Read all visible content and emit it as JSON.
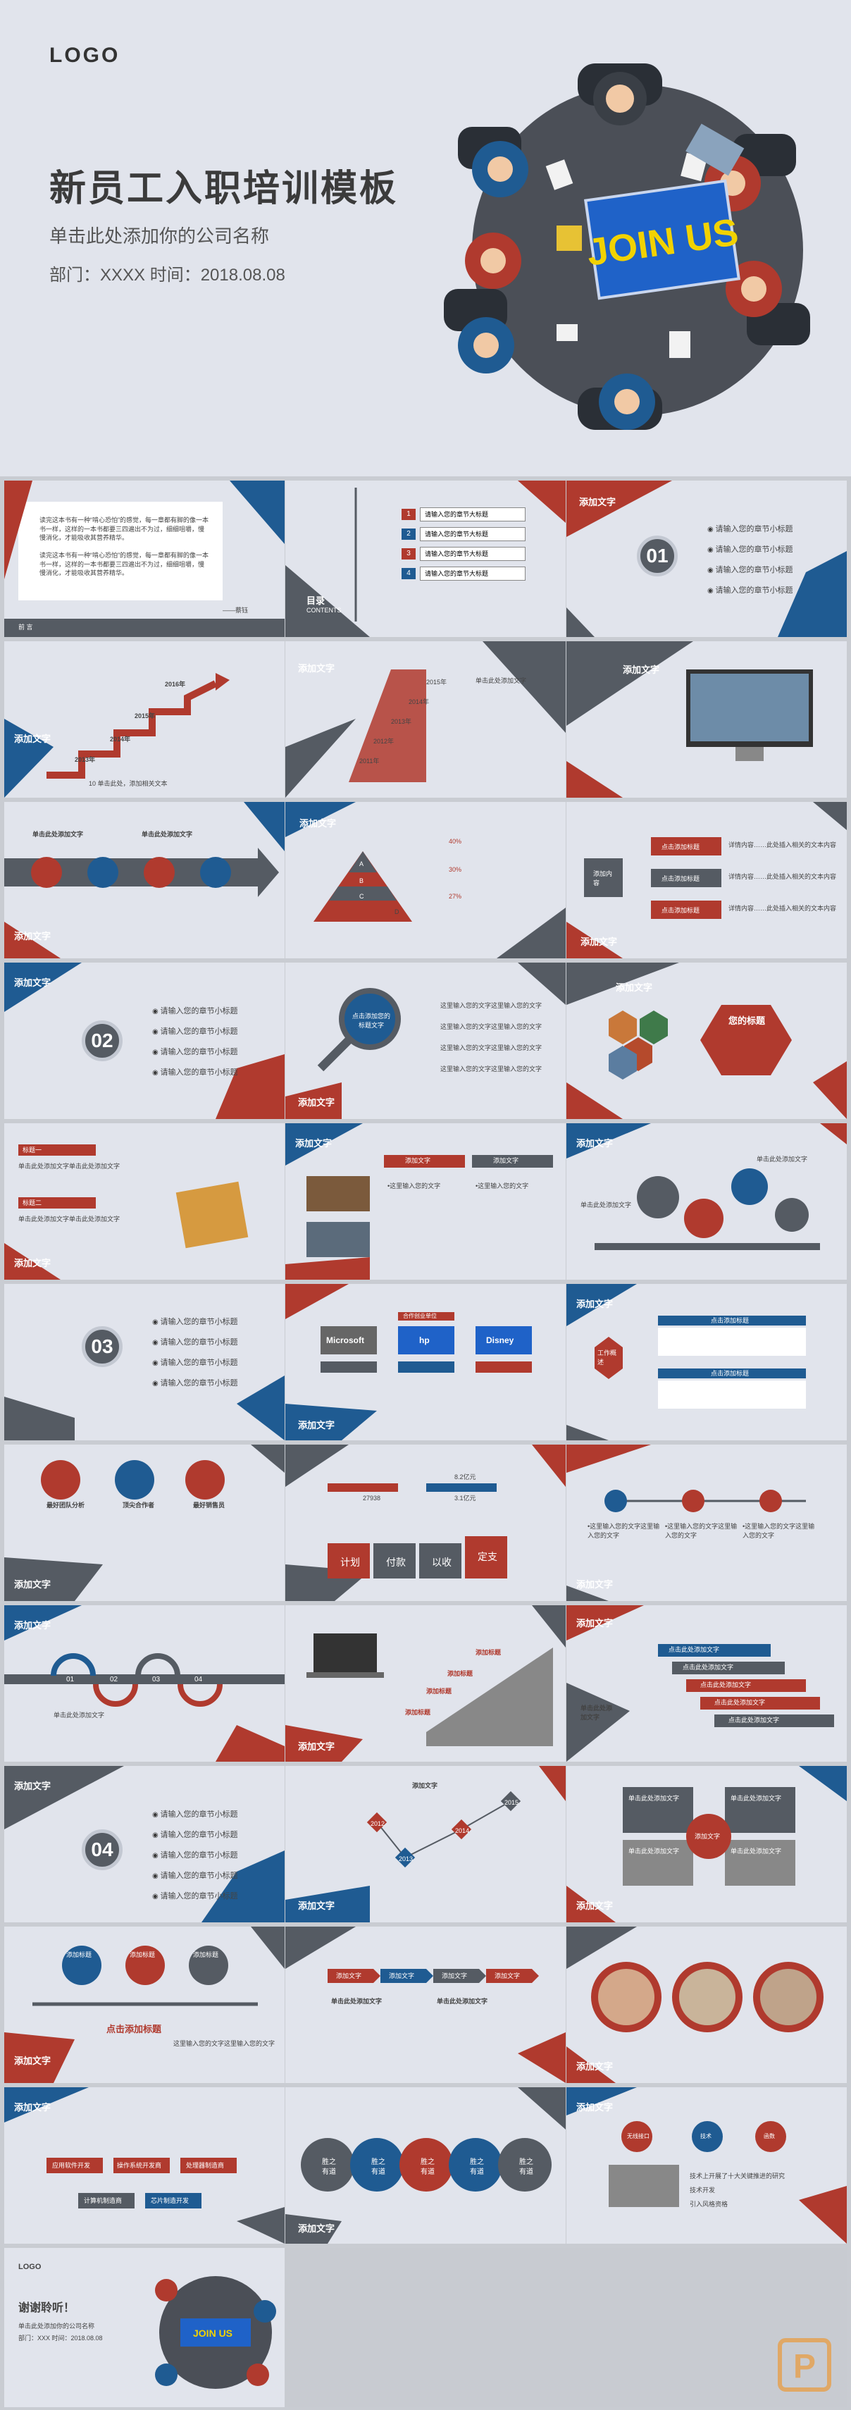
{
  "hero": {
    "logo": "LOGO",
    "title": "新员工入职培训模板",
    "subtitle": "单击此处添加你的公司名称",
    "meta": "部门：XXXX     时间：2018.08.08",
    "center_sign": "JOIN US"
  },
  "s1": {
    "quote": "读完这本书有一种“啃心恐怕”的感觉，每一章都有脚的像一本书一样，这样的一本书都要三四遍出不为过，细细咀嚼，慢慢消化，才能吸收其营养精华。",
    "quote2": "读完这本书有一种“啃心恐怕”的感觉，每一章都有脚的像一本书一样，这样的一本书都要三四遍出不为过，细细咀嚼，慢慢消化，才能吸收其营养精华。",
    "foot_left": "前 言",
    "foot_right": "——蔡钰"
  },
  "s2": {
    "title": "目录",
    "en": "CONTENTS",
    "items": [
      "请输入您的章节大标题",
      "请输入您的章节大标题",
      "请输入您的章节大标题",
      "请输入您的章节大标题"
    ],
    "nums": [
      "1",
      "2",
      "3",
      "4"
    ]
  },
  "s3": {
    "tag": "添加文字",
    "num": "01",
    "items": [
      "请输入您的章节小标题",
      "请输入您的章节小标题",
      "请输入您的章节小标题",
      "请输入您的章节小标题"
    ]
  },
  "s4": {
    "tag": "添加文字",
    "years": [
      "2013年",
      "2014年",
      "2015年",
      "2016年"
    ],
    "note": "10 单击此处，添加相关文本"
  },
  "s5": {
    "tag": "添加文字",
    "years": [
      "2015年",
      "2014年",
      "2013年",
      "2012年",
      "2011年"
    ],
    "note": "单击此处添加文字"
  },
  "s6": {
    "tag": "添加文字"
  },
  "s7": {
    "tag": "添加文字",
    "labels": [
      "单击此处添加文字",
      "单击此处添加文字"
    ]
  },
  "s8": {
    "tag": "添加文字",
    "levels": [
      "A",
      "B",
      "C",
      "D"
    ],
    "pcts": [
      "40%",
      "30%",
      "27%"
    ],
    "note": "单击此处添加文字"
  },
  "s9": {
    "tag": "添加文字",
    "center": "添加内容",
    "rows": [
      "点击添加标题",
      "点击添加标题",
      "点击添加标题"
    ],
    "desc": "详情内容……此处插入相关的文本内容"
  },
  "s10": {
    "tag": "添加文字",
    "num": "02",
    "items": [
      "请输入您的章节小标题",
      "请输入您的章节小标题",
      "请输入您的章节小标题",
      "请输入您的章节小标题"
    ]
  },
  "s11": {
    "tag": "添加文字",
    "bubble": "点击添加您的标题文字",
    "items": [
      "这里输入您的文字这里输入您的文字",
      "这里输入您的文字这里输入您的文字",
      "这里输入您的文字这里输入您的文字",
      "这里输入您的文字这里输入您的文字"
    ]
  },
  "s12": {
    "tag": "添加文字",
    "hex_title": "您的标题"
  },
  "s13": {
    "tag": "添加文字",
    "h1": "标题一",
    "h2": "标题二",
    "text": "单击此处添加文字单击此处添加文字"
  },
  "s14": {
    "tag": "添加文字",
    "cols": [
      "添加文字",
      "添加文字"
    ],
    "item": "•这里输入您的文字"
  },
  "s15": {
    "tag": "添加文字",
    "gears": [
      "单击此处添加文字",
      "单击此处添加文字"
    ]
  },
  "s16": {
    "tag": "添加文字",
    "num": "03",
    "items": [
      "请输入您的章节小标题",
      "请输入您的章节小标题",
      "请输入您的章节小标题",
      "请输入您的章节小标题"
    ]
  },
  "s17": {
    "tag": "添加文字",
    "head": "合作创业单位",
    "logos": [
      "Microsoft",
      "hp",
      "Disney"
    ],
    "sub": [
      "微软",
      "小惠科",
      "大儿童",
      "微软IQ通话",
      "微风",
      "传讯网格，强规"
    ]
  },
  "s18": {
    "tag": "添加文字",
    "center": "工作概述",
    "heads": [
      "点击添加标题",
      "点击添加标题"
    ]
  },
  "s19": {
    "tag": "添加文字",
    "badges": [
      "最好团队分析",
      "顶尖合作者",
      "最好销售员"
    ]
  },
  "s20": {
    "tag": "添加文字",
    "blocks": [
      "计划",
      "付款",
      "以收",
      "定支"
    ],
    "vals": [
      "27938",
      "8.2亿元",
      "3.1亿元"
    ]
  },
  "s21": {
    "tag": "添加文字",
    "item": "•这里输入您的文字这里输入您的文字"
  },
  "s22": {
    "tag": "添加文字",
    "nums": [
      "01",
      "02",
      "03",
      "04"
    ],
    "note": "单击此处添加文字"
  },
  "s23": {
    "tag": "添加文字",
    "labels": [
      "添加标题",
      "添加标题",
      "添加标题",
      "添加标题"
    ]
  },
  "s24": {
    "tag": "添加文字",
    "center": "单击此处添加文字",
    "bars": [
      "点击此处添加文字",
      "点击此处添加文字",
      "点击此处添加文字",
      "点击此处添加文字",
      "点击此处添加文字"
    ]
  },
  "s25": {
    "tag": "添加文字",
    "num": "04",
    "items": [
      "请输入您的章节小标题",
      "请输入您的章节小标题",
      "请输入您的章节小标题",
      "请输入您的章节小标题",
      "请输入您的章节小标题"
    ]
  },
  "s26": {
    "tag": "添加文字",
    "top": "添加文字",
    "years": [
      "2012",
      "2013",
      "2014",
      "2015"
    ]
  },
  "s27": {
    "tag": "添加文字",
    "center": "添加文字",
    "block": "单击此处添加文字"
  },
  "s28": {
    "tag": "添加文字",
    "heads": [
      "添加标题",
      "添加标题",
      "添加标题"
    ],
    "center": "点击添加标题",
    "item": "这里输入您的文字这里输入您的文字"
  },
  "s29": {
    "tag": "添加文字",
    "arrows": [
      "添加文字",
      "添加文字",
      "添加文字",
      "添加文字"
    ],
    "cell": "单击此处添加文字"
  },
  "s30": {
    "tag": "添加文字"
  },
  "s31": {
    "tag": "添加文字",
    "boxes": [
      "应用软件开发",
      "操作系统开发商",
      "处理器制造商",
      "计算机制造商",
      "芯片制造开发"
    ]
  },
  "s32": {
    "tag": "添加文字",
    "circles": [
      "胜之有道",
      "胜之有道",
      "胜之有道",
      "胜之有道",
      "胜之有道"
    ]
  },
  "s33": {
    "tag": "添加文字",
    "bubbles": [
      "无线接口",
      "技术",
      "函数"
    ],
    "items": [
      "技术上开展了十大关键推进的研究",
      "技术开发",
      "引入风格资格"
    ]
  },
  "end": {
    "logo": "LOGO",
    "title": "谢谢聆听！",
    "sub": "单击此处添加你的公司名称",
    "meta": "部门：XXX     时间：2018.08.08",
    "sign": "JOIN US"
  },
  "colors": {
    "red": "#b03a2e",
    "blue": "#1f5b92",
    "gray": "#555b63",
    "bg": "#e1e4ec"
  }
}
